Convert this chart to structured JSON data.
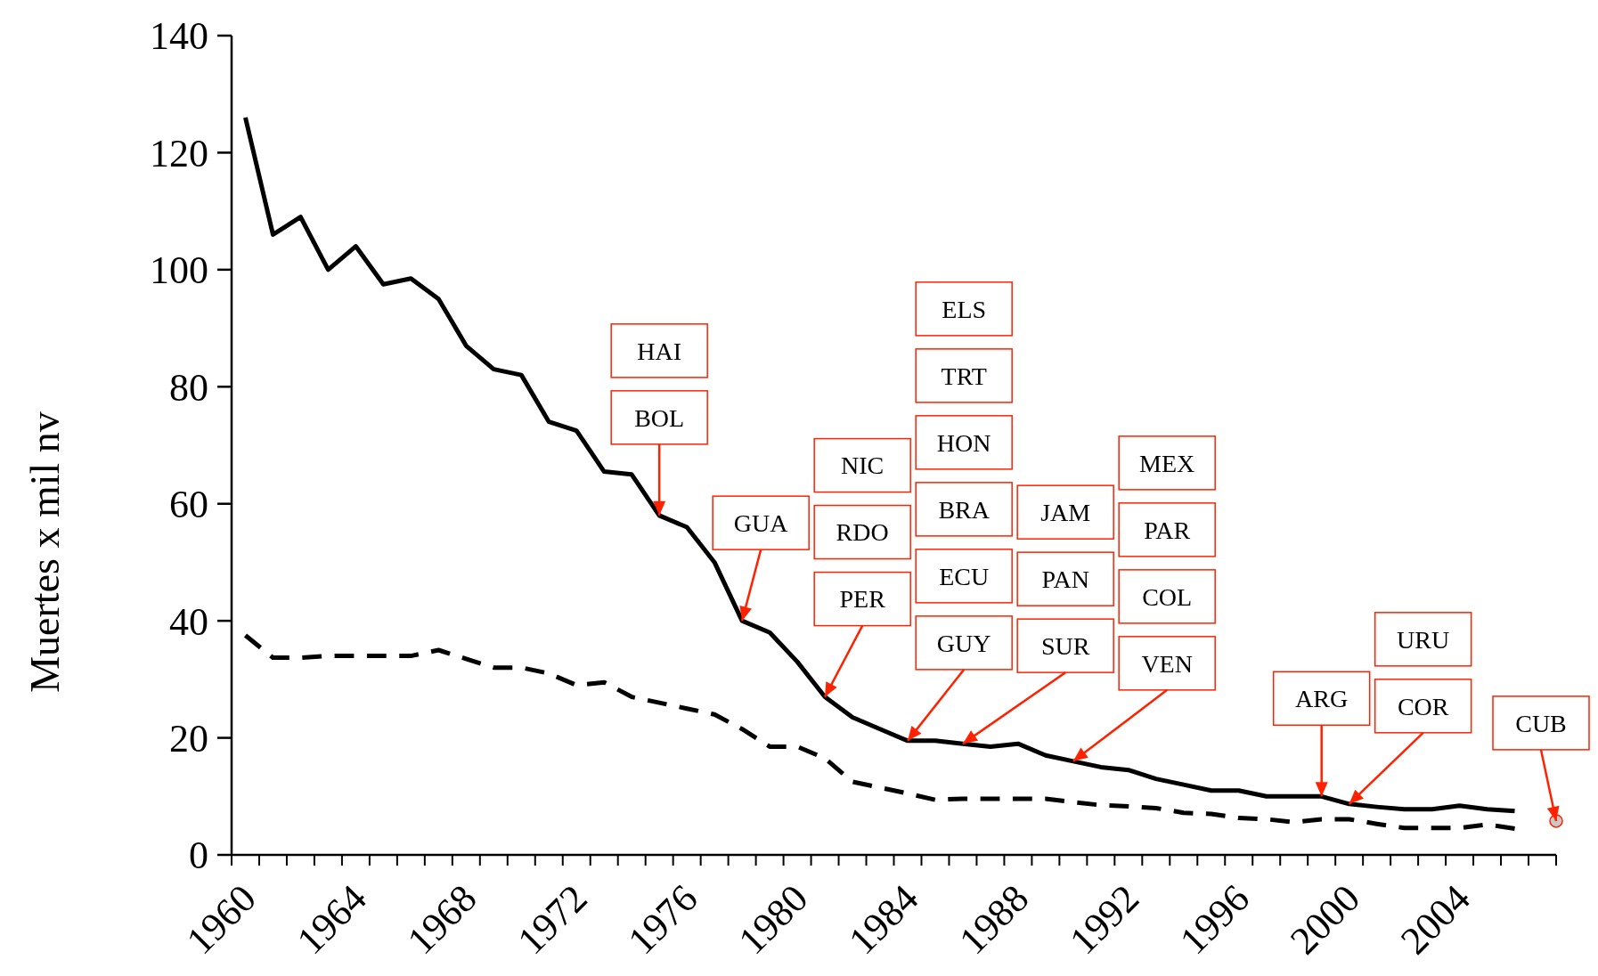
{
  "chart_data": {
    "type": "line",
    "ylabel": "Muertes x mil nv",
    "xlim": [
      1960,
      2008
    ],
    "xticks": [
      1960,
      1964,
      1968,
      1972,
      1976,
      1980,
      1984,
      1988,
      1992,
      1996,
      2000,
      2004
    ],
    "ylim": [
      0,
      140
    ],
    "yticks": [
      0,
      20,
      40,
      60,
      80,
      100,
      120,
      140
    ],
    "grid": false,
    "x": [
      1960.5,
      1961.5,
      1962.5,
      1963.5,
      1964.5,
      1965.5,
      1966.5,
      1967.5,
      1968.5,
      1969.5,
      1970.5,
      1971.5,
      1972.5,
      1973.5,
      1974.5,
      1975.5,
      1976.5,
      1977.5,
      1978.5,
      1979.5,
      1980.5,
      1981.5,
      1982.5,
      1983.5,
      1984.5,
      1985.5,
      1986.5,
      1987.5,
      1988.5,
      1989.5,
      1990.5,
      1991.5,
      1992.5,
      1993.5,
      1994.5,
      1995.5,
      1996.5,
      1997.5,
      1998.5,
      1999.5,
      2000.5,
      2001.5,
      2002.5,
      2003.5,
      2004.5,
      2005.5,
      2006.5
    ],
    "series": [
      {
        "color": "#000000",
        "line_style": "solid",
        "values": [
          126,
          106,
          109,
          100,
          104,
          97.5,
          98.5,
          95,
          87,
          83,
          82,
          74,
          72.5,
          65.5,
          65,
          58,
          56,
          50,
          40,
          38,
          33,
          27,
          23.5,
          21.5,
          19.5,
          19.5,
          19,
          18.5,
          19,
          17,
          16,
          15,
          14.5,
          13,
          12,
          11,
          11,
          10,
          10,
          10,
          8.7,
          8.2,
          7.8,
          7.8,
          8.4,
          7.8,
          7.5
        ]
      },
      {
        "color": "#000000",
        "line_style": "dashed",
        "values": [
          37.5,
          33.7,
          33.7,
          34,
          34,
          34,
          34,
          35,
          33.5,
          32,
          32,
          31,
          29,
          29.5,
          27,
          26,
          25,
          24,
          21.5,
          18.5,
          18.5,
          16.5,
          12.5,
          11.5,
          10.5,
          9.4,
          9.6,
          9.6,
          9.6,
          9.6,
          9,
          8.5,
          8.3,
          8,
          7.2,
          7,
          6.3,
          6.1,
          5.6,
          6.1,
          6.1,
          5.3,
          4.6,
          4.6,
          4.6,
          5.2,
          4.5
        ]
      },
      {
        "type": "scatter",
        "color": "#c8c8c8",
        "marker": "circle",
        "x": [
          2008
        ],
        "values": [
          5.8
        ]
      }
    ],
    "annotations": [
      "HAI",
      {
        "text": "BOL",
        "x": 1975.5,
        "y": 58
      },
      {
        "text": "GUA",
        "x": 1978.5,
        "y": 40
      },
      "NIC",
      "RDO",
      {
        "text": "PER",
        "x": 1981.5,
        "y": 27
      },
      "ELS",
      "TRT",
      "HON",
      "BRA",
      "ECU",
      {
        "text": "GUY",
        "x": 1984.5,
        "y": 19.5
      },
      "JAM",
      "PAN",
      {
        "text": "SUR",
        "x": 1986.5,
        "y": 19
      },
      "MEX",
      "PAR",
      "COL",
      {
        "text": "VEN",
        "x": 1990.5,
        "y": 16
      },
      {
        "text": "ARG",
        "x": 1999.5,
        "y": 10
      },
      "URU",
      {
        "text": "COR",
        "x": 2000.5,
        "y": 8.7
      },
      {
        "text": "CUB",
        "x": 2008,
        "y": 5.8
      }
    ]
  }
}
